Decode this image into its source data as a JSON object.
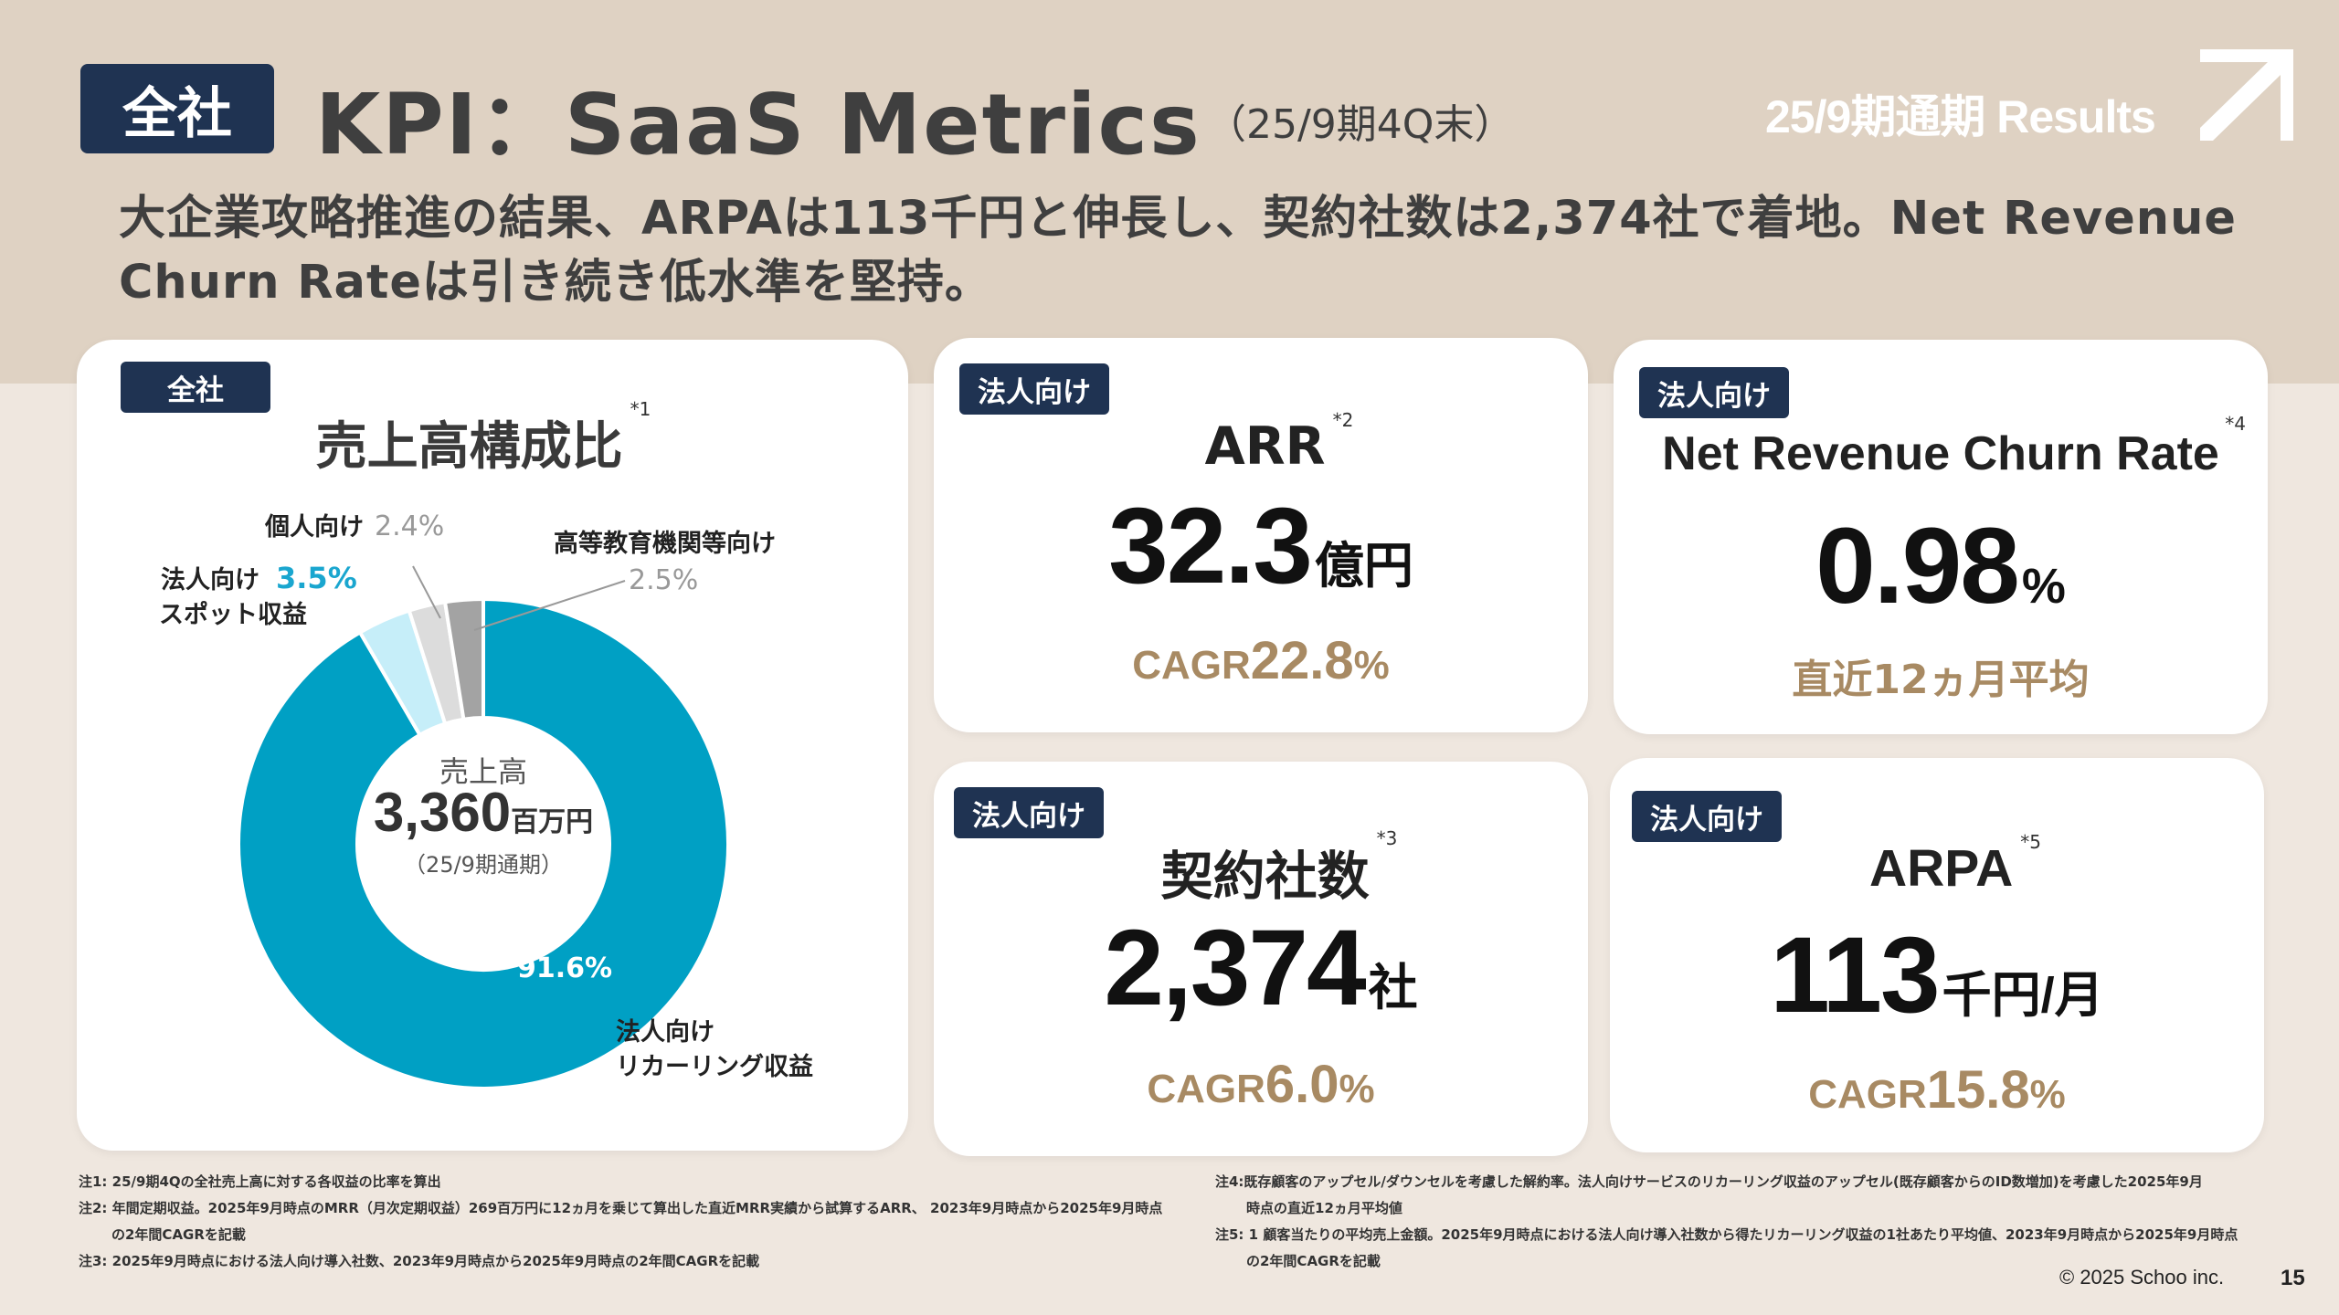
{
  "header": {
    "tag": "全社",
    "title": "KPI：SaaS Metrics",
    "title_sub": "（25/9期4Q末）",
    "results": "25/9期通期 Results",
    "lead": "大企業攻略推進の結果、ARPAは113千円と伸長し、契約社数は2,374社で着地。Net Revenue Churn Rateは引き続き低水準を堅持。"
  },
  "composition": {
    "tag": "全社",
    "title": "売上高構成比",
    "note_mark": "*1",
    "center_label": "売上高",
    "center_value": "3,360",
    "center_unit": "百万円",
    "center_period": "（25/9期通期）",
    "segments": [
      {
        "name": "法人向けリカーリング収益",
        "line1": "法人向け",
        "line2": "リカーリング収益",
        "pct": "91.6%",
        "value": 91.6,
        "color": "#00a0c4"
      },
      {
        "name": "法人向けスポット収益",
        "line1": "法人向け",
        "line2": "スポット収益",
        "pct": "3.5%",
        "value": 3.5,
        "color": "#c6eef9"
      },
      {
        "name": "個人向け",
        "pct": "2.4%",
        "value": 2.4,
        "color": "#dcdcdc"
      },
      {
        "name": "高等教育機関等向け",
        "pct": "2.5%",
        "value": 2.5,
        "color": "#a3a3a3"
      }
    ]
  },
  "chart_data": {
    "type": "pie",
    "title": "売上高構成比",
    "categories": [
      "法人向けリカーリング収益",
      "法人向けスポット収益",
      "個人向け",
      "高等教育機関等向け"
    ],
    "values": [
      91.6,
      3.5,
      2.4,
      2.5
    ]
  },
  "kpis": {
    "arr": {
      "tag": "法人向け",
      "name": "ARR",
      "mark": "*2",
      "value": "32.3",
      "unit": "億円",
      "sub_prefix": "CAGR",
      "sub_value": "22.8",
      "sub_unit": "%"
    },
    "churn": {
      "tag": "法人向け",
      "name": "Net Revenue Churn Rate",
      "mark": "*4",
      "value": "0.98",
      "unit": "%",
      "sub_text": "直近12ヵ月平均"
    },
    "companies": {
      "tag": "法人向け",
      "name": "契約社数",
      "mark": "*3",
      "value": "2,374",
      "unit": "社",
      "sub_prefix": "CAGR",
      "sub_value": "6.0",
      "sub_unit": "%"
    },
    "arpa": {
      "tag": "法人向け",
      "name": "ARPA",
      "mark": "*5",
      "value": "113",
      "unit": "千円/月",
      "sub_prefix": "CAGR",
      "sub_value": "15.8",
      "sub_unit": "%"
    }
  },
  "notes_left": [
    "注1: 25/9期4Qの全社売上高に対する各収益の比率を算出",
    "注2: 年間定期収益。2025年9月時点のMRR（月次定期収益）269百万円に12ヵ月を乗じて算出した直近MRR実績から試算するARR、 2023年9月時点から2025年9月時点",
    "の2年間CAGRを記載",
    "注3: 2025年9月時点における法人向け導入社数、2023年9月時点から2025年9月時点の2年間CAGRを記載"
  ],
  "notes_right": [
    "注4:既存顧客のアップセル/ダウンセルを考慮した解約率。法人向けサービスのリカーリング収益のアップセル(既存顧客からのID数増加)を考慮した2025年9月",
    "時点の直近12ヵ月平均値",
    "注5: 1 顧客当たりの平均売上金額。2025年9月時点における法人向け導入社数から得たリカーリング収益の1社あたり平均値、2023年9月時点から2025年9月時点",
    "の2年間CAGRを記載"
  ],
  "footer": {
    "copyright": "© 2025 Schoo inc.",
    "page": "15"
  }
}
